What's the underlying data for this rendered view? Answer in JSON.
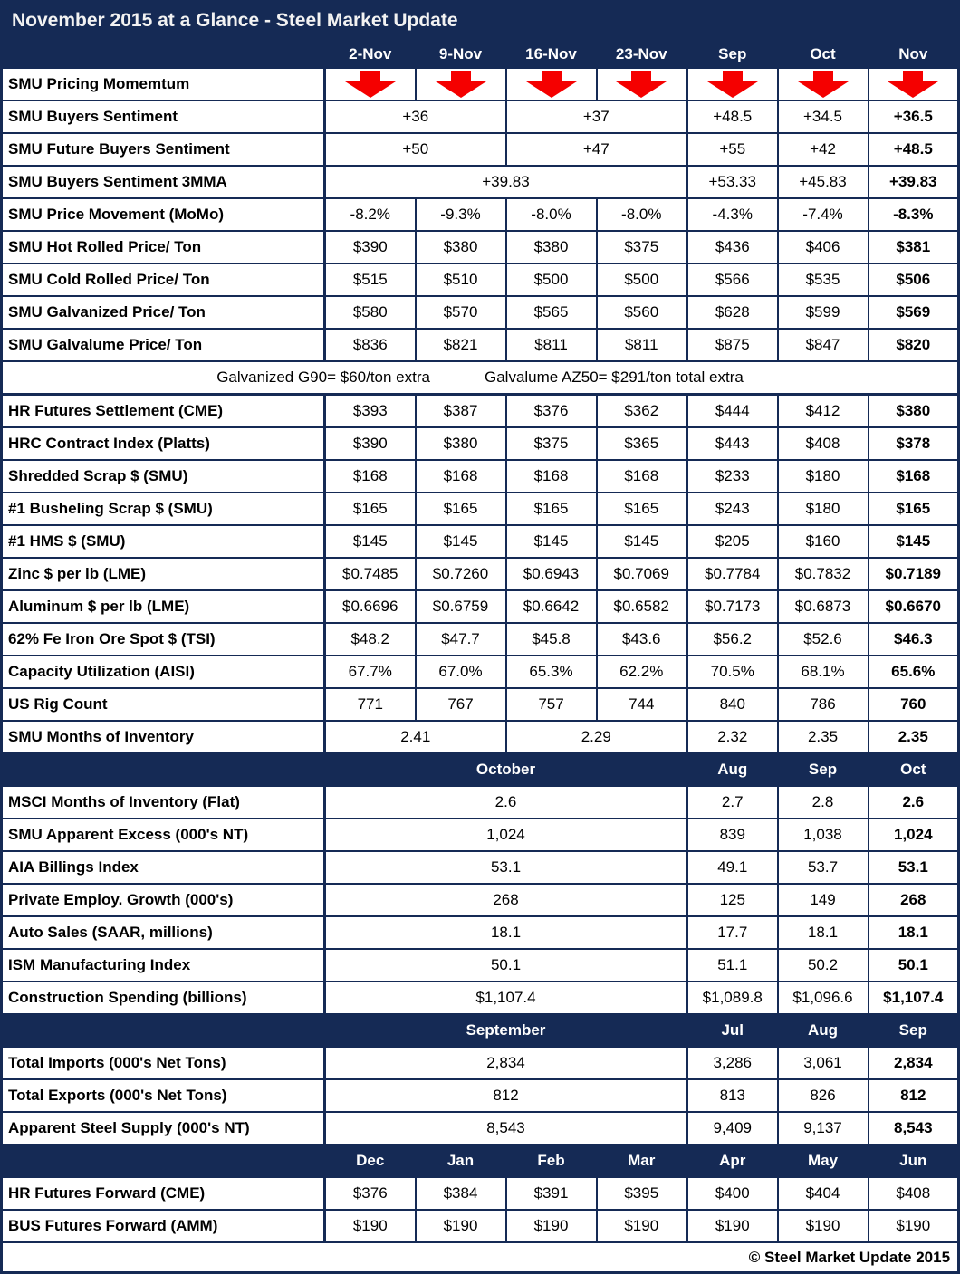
{
  "title": "November 2015 at a Glance - Steel Market Update",
  "footer_copyright": "© Steel Market Update 2015",
  "colors": {
    "navy": "#152A55",
    "arrow_red": "#F50000",
    "title_text": "#F2F2F2",
    "value_text": "#000000",
    "cell_bg": "#FFFFFF"
  },
  "icons": {
    "momentum_indicator": "down-arrow-icon"
  },
  "table": {
    "rows": [
      {
        "type": "title"
      },
      {
        "type": "colheader",
        "cells": [
          {
            "t": "2-Nov"
          },
          {
            "t": "9-Nov"
          },
          {
            "t": "16-Nov"
          },
          {
            "t": "23-Nov"
          },
          {
            "t": "Sep"
          },
          {
            "t": "Oct"
          },
          {
            "t": "Nov"
          }
        ]
      },
      {
        "type": "arrows",
        "label": "SMU Pricing Momemtum",
        "arrow_count": 7
      },
      {
        "type": "data",
        "label": "SMU Buyers Sentiment",
        "cells": [
          {
            "t": "+36",
            "s": 2
          },
          {
            "t": "+37",
            "s": 2
          },
          {
            "t": "+48.5"
          },
          {
            "t": "+34.5"
          },
          {
            "t": "+36.5",
            "b": true
          }
        ]
      },
      {
        "type": "data",
        "label": "SMU Future Buyers Sentiment",
        "cells": [
          {
            "t": "+50",
            "s": 2
          },
          {
            "t": "+47",
            "s": 2
          },
          {
            "t": "+55"
          },
          {
            "t": "+42"
          },
          {
            "t": "+48.5",
            "b": true
          }
        ]
      },
      {
        "type": "data",
        "label": "SMU Buyers Sentiment 3MMA",
        "cells": [
          {
            "t": "+39.83",
            "s": 4
          },
          {
            "t": "+53.33"
          },
          {
            "t": "+45.83"
          },
          {
            "t": "+39.83",
            "b": true
          }
        ]
      },
      {
        "type": "data",
        "label": "SMU Price Movement (MoMo)",
        "cells": [
          {
            "t": "-8.2%"
          },
          {
            "t": "-9.3%"
          },
          {
            "t": "-8.0%"
          },
          {
            "t": "-8.0%"
          },
          {
            "t": "-4.3%"
          },
          {
            "t": "-7.4%"
          },
          {
            "t": "-8.3%",
            "b": true
          }
        ]
      },
      {
        "type": "data",
        "label": "SMU Hot Rolled Price/ Ton",
        "cells": [
          {
            "t": "$390"
          },
          {
            "t": "$380"
          },
          {
            "t": "$380"
          },
          {
            "t": "$375"
          },
          {
            "t": "$436"
          },
          {
            "t": "$406"
          },
          {
            "t": "$381",
            "b": true
          }
        ]
      },
      {
        "type": "data",
        "label": "SMU Cold Rolled Price/ Ton",
        "cells": [
          {
            "t": "$515"
          },
          {
            "t": "$510"
          },
          {
            "t": "$500"
          },
          {
            "t": "$500"
          },
          {
            "t": "$566"
          },
          {
            "t": "$535"
          },
          {
            "t": "$506",
            "b": true
          }
        ]
      },
      {
        "type": "data",
        "label": "SMU Galvanized Price/ Ton",
        "cells": [
          {
            "t": "$580"
          },
          {
            "t": "$570"
          },
          {
            "t": "$565"
          },
          {
            "t": "$560"
          },
          {
            "t": "$628"
          },
          {
            "t": "$599"
          },
          {
            "t": "$569",
            "b": true
          }
        ]
      },
      {
        "type": "data",
        "label": "SMU Galvalume Price/ Ton",
        "cells": [
          {
            "t": "$836"
          },
          {
            "t": "$821"
          },
          {
            "t": "$811"
          },
          {
            "t": "$811"
          },
          {
            "t": "$875"
          },
          {
            "t": "$847"
          },
          {
            "t": "$820",
            "b": true
          }
        ]
      },
      {
        "type": "note",
        "note1": "Galvanized G90= $60/ton extra",
        "note2": "Galvalume AZ50= $291/ton total extra"
      },
      {
        "type": "data",
        "label": "HR Futures Settlement (CME)",
        "cells": [
          {
            "t": "$393"
          },
          {
            "t": "$387"
          },
          {
            "t": "$376"
          },
          {
            "t": "$362"
          },
          {
            "t": "$444"
          },
          {
            "t": "$412"
          },
          {
            "t": "$380",
            "b": true
          }
        ]
      },
      {
        "type": "data",
        "label": "HRC Contract Index (Platts)",
        "cells": [
          {
            "t": "$390"
          },
          {
            "t": "$380"
          },
          {
            "t": "$375"
          },
          {
            "t": "$365"
          },
          {
            "t": "$443"
          },
          {
            "t": "$408"
          },
          {
            "t": "$378",
            "b": true
          }
        ]
      },
      {
        "type": "data",
        "label": "Shredded Scrap $ (SMU)",
        "cells": [
          {
            "t": "$168"
          },
          {
            "t": "$168"
          },
          {
            "t": "$168"
          },
          {
            "t": "$168"
          },
          {
            "t": "$233"
          },
          {
            "t": "$180"
          },
          {
            "t": "$168",
            "b": true
          }
        ]
      },
      {
        "type": "data",
        "label": "#1 Busheling Scrap $ (SMU)",
        "cells": [
          {
            "t": "$165"
          },
          {
            "t": "$165"
          },
          {
            "t": "$165"
          },
          {
            "t": "$165"
          },
          {
            "t": "$243"
          },
          {
            "t": "$180"
          },
          {
            "t": "$165",
            "b": true
          }
        ]
      },
      {
        "type": "data",
        "label": "#1 HMS $ (SMU)",
        "cells": [
          {
            "t": "$145"
          },
          {
            "t": "$145"
          },
          {
            "t": "$145"
          },
          {
            "t": "$145"
          },
          {
            "t": "$205"
          },
          {
            "t": "$160"
          },
          {
            "t": "$145",
            "b": true
          }
        ]
      },
      {
        "type": "data",
        "label": "Zinc $ per lb (LME)",
        "cells": [
          {
            "t": "$0.7485"
          },
          {
            "t": "$0.7260"
          },
          {
            "t": "$0.6943"
          },
          {
            "t": "$0.7069"
          },
          {
            "t": "$0.7784"
          },
          {
            "t": "$0.7832"
          },
          {
            "t": "$0.7189",
            "b": true
          }
        ]
      },
      {
        "type": "data",
        "label": "Aluminum $ per lb (LME)",
        "cells": [
          {
            "t": "$0.6696"
          },
          {
            "t": "$0.6759"
          },
          {
            "t": "$0.6642"
          },
          {
            "t": "$0.6582"
          },
          {
            "t": "$0.7173"
          },
          {
            "t": "$0.6873"
          },
          {
            "t": "$0.6670",
            "b": true
          }
        ]
      },
      {
        "type": "data",
        "label": "62% Fe Iron Ore Spot $ (TSI)",
        "cells": [
          {
            "t": "$48.2"
          },
          {
            "t": "$47.7"
          },
          {
            "t": "$45.8"
          },
          {
            "t": "$43.6"
          },
          {
            "t": "$56.2"
          },
          {
            "t": "$52.6"
          },
          {
            "t": "$46.3",
            "b": true
          }
        ]
      },
      {
        "type": "data",
        "label": "Capacity Utilization (AISI)",
        "cells": [
          {
            "t": "67.7%"
          },
          {
            "t": "67.0%"
          },
          {
            "t": "65.3%"
          },
          {
            "t": "62.2%"
          },
          {
            "t": "70.5%"
          },
          {
            "t": "68.1%"
          },
          {
            "t": "65.6%",
            "b": true
          }
        ]
      },
      {
        "type": "data",
        "label": "US Rig Count",
        "cells": [
          {
            "t": "771"
          },
          {
            "t": "767"
          },
          {
            "t": "757"
          },
          {
            "t": "744"
          },
          {
            "t": "840"
          },
          {
            "t": "786"
          },
          {
            "t": "760",
            "b": true
          }
        ]
      },
      {
        "type": "data",
        "label": "SMU Months of Inventory",
        "cells": [
          {
            "t": "2.41",
            "s": 2
          },
          {
            "t": "2.29",
            "s": 2
          },
          {
            "t": "2.32"
          },
          {
            "t": "2.35"
          },
          {
            "t": "2.35",
            "b": true
          }
        ]
      },
      {
        "type": "header",
        "cells": [
          {
            "t": "October",
            "s": 4
          },
          {
            "t": "Aug"
          },
          {
            "t": "Sep"
          },
          {
            "t": "Oct"
          }
        ]
      },
      {
        "type": "data",
        "label": "MSCI Months of Inventory (Flat)",
        "cells": [
          {
            "t": "2.6",
            "s": 4
          },
          {
            "t": "2.7"
          },
          {
            "t": "2.8"
          },
          {
            "t": "2.6",
            "b": true
          }
        ]
      },
      {
        "type": "data",
        "label": "SMU Apparent Excess (000's NT)",
        "cells": [
          {
            "t": "1,024",
            "s": 4
          },
          {
            "t": "839"
          },
          {
            "t": "1,038"
          },
          {
            "t": "1,024",
            "b": true
          }
        ]
      },
      {
        "type": "data",
        "label": "AIA Billings Index",
        "cells": [
          {
            "t": "53.1",
            "s": 4
          },
          {
            "t": "49.1"
          },
          {
            "t": "53.7"
          },
          {
            "t": "53.1",
            "b": true
          }
        ]
      },
      {
        "type": "data",
        "label": "Private Employ. Growth (000's)",
        "cells": [
          {
            "t": "268",
            "s": 4
          },
          {
            "t": "125"
          },
          {
            "t": "149"
          },
          {
            "t": "268",
            "b": true
          }
        ]
      },
      {
        "type": "data",
        "label": "Auto Sales (SAAR, millions)",
        "cells": [
          {
            "t": "18.1",
            "s": 4
          },
          {
            "t": "17.7"
          },
          {
            "t": "18.1"
          },
          {
            "t": "18.1",
            "b": true
          }
        ]
      },
      {
        "type": "data",
        "label": "ISM Manufacturing Index",
        "cells": [
          {
            "t": "50.1",
            "s": 4
          },
          {
            "t": "51.1"
          },
          {
            "t": "50.2"
          },
          {
            "t": "50.1",
            "b": true
          }
        ]
      },
      {
        "type": "data",
        "label": "Construction Spending (billions)",
        "cells": [
          {
            "t": "$1,107.4",
            "s": 4
          },
          {
            "t": "$1,089.8"
          },
          {
            "t": "$1,096.6"
          },
          {
            "t": "$1,107.4",
            "b": true
          }
        ]
      },
      {
        "type": "header",
        "cells": [
          {
            "t": "September",
            "s": 4
          },
          {
            "t": "Jul"
          },
          {
            "t": "Aug"
          },
          {
            "t": "Sep"
          }
        ]
      },
      {
        "type": "data",
        "label": "Total Imports (000's Net Tons)",
        "cells": [
          {
            "t": "2,834",
            "s": 4
          },
          {
            "t": "3,286"
          },
          {
            "t": "3,061"
          },
          {
            "t": "2,834",
            "b": true
          }
        ]
      },
      {
        "type": "data",
        "label": "Total Exports (000's Net Tons)",
        "cells": [
          {
            "t": "812",
            "s": 4
          },
          {
            "t": "813"
          },
          {
            "t": "826"
          },
          {
            "t": "812",
            "b": true
          }
        ]
      },
      {
        "type": "data",
        "label": "Apparent Steel Supply (000's NT)",
        "cells": [
          {
            "t": "8,543",
            "s": 4
          },
          {
            "t": "9,409"
          },
          {
            "t": "9,137"
          },
          {
            "t": "8,543",
            "b": true
          }
        ]
      },
      {
        "type": "header",
        "cells": [
          {
            "t": "Dec"
          },
          {
            "t": "Jan"
          },
          {
            "t": "Feb"
          },
          {
            "t": "Mar"
          },
          {
            "t": "Apr"
          },
          {
            "t": "May"
          },
          {
            "t": "Jun"
          }
        ]
      },
      {
        "type": "data",
        "label": "HR Futures Forward (CME)",
        "cells": [
          {
            "t": "$376"
          },
          {
            "t": "$384"
          },
          {
            "t": "$391"
          },
          {
            "t": "$395"
          },
          {
            "t": "$400"
          },
          {
            "t": "$404"
          },
          {
            "t": "$408"
          }
        ]
      },
      {
        "type": "data",
        "label": "BUS Futures Forward (AMM)",
        "cells": [
          {
            "t": "$190"
          },
          {
            "t": "$190"
          },
          {
            "t": "$190"
          },
          {
            "t": "$190"
          },
          {
            "t": "$190"
          },
          {
            "t": "$190"
          },
          {
            "t": "$190"
          }
        ]
      },
      {
        "type": "footer"
      }
    ]
  }
}
